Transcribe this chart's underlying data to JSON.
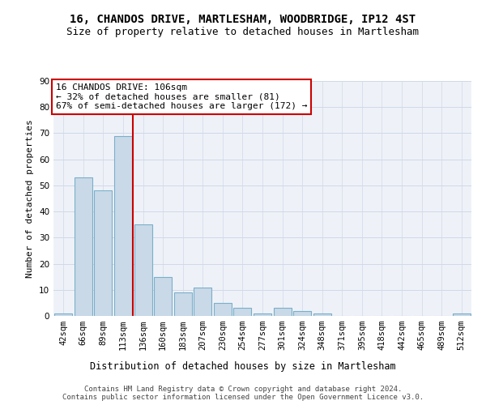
{
  "title": "16, CHANDOS DRIVE, MARTLESHAM, WOODBRIDGE, IP12 4ST",
  "subtitle": "Size of property relative to detached houses in Martlesham",
  "xlabel": "Distribution of detached houses by size in Martlesham",
  "ylabel": "Number of detached properties",
  "bar_labels": [
    "42sqm",
    "66sqm",
    "89sqm",
    "113sqm",
    "136sqm",
    "160sqm",
    "183sqm",
    "207sqm",
    "230sqm",
    "254sqm",
    "277sqm",
    "301sqm",
    "324sqm",
    "348sqm",
    "371sqm",
    "395sqm",
    "418sqm",
    "442sqm",
    "465sqm",
    "489sqm",
    "512sqm"
  ],
  "bar_values": [
    1,
    53,
    48,
    69,
    35,
    15,
    9,
    11,
    5,
    3,
    1,
    3,
    2,
    1,
    0,
    0,
    0,
    0,
    0,
    0,
    1
  ],
  "bar_color": "#c9d9e8",
  "bar_edge_color": "#7aafc9",
  "vline_x": 3.5,
  "vline_color": "#cc0000",
  "annotation_text": "16 CHANDOS DRIVE: 106sqm\n← 32% of detached houses are smaller (81)\n67% of semi-detached houses are larger (172) →",
  "annotation_box_color": "#ffffff",
  "annotation_box_edge_color": "#cc0000",
  "ylim": [
    0,
    90
  ],
  "yticks": [
    0,
    10,
    20,
    30,
    40,
    50,
    60,
    70,
    80,
    90
  ],
  "grid_color": "#d0d8e8",
  "bg_color": "#eef2f8",
  "footer_line1": "Contains HM Land Registry data © Crown copyright and database right 2024.",
  "footer_line2": "Contains public sector information licensed under the Open Government Licence v3.0.",
  "title_fontsize": 10,
  "subtitle_fontsize": 9,
  "annotation_fontsize": 8,
  "ylabel_fontsize": 8,
  "xlabel_fontsize": 8.5,
  "tick_fontsize": 7.5,
  "footer_fontsize": 6.5
}
